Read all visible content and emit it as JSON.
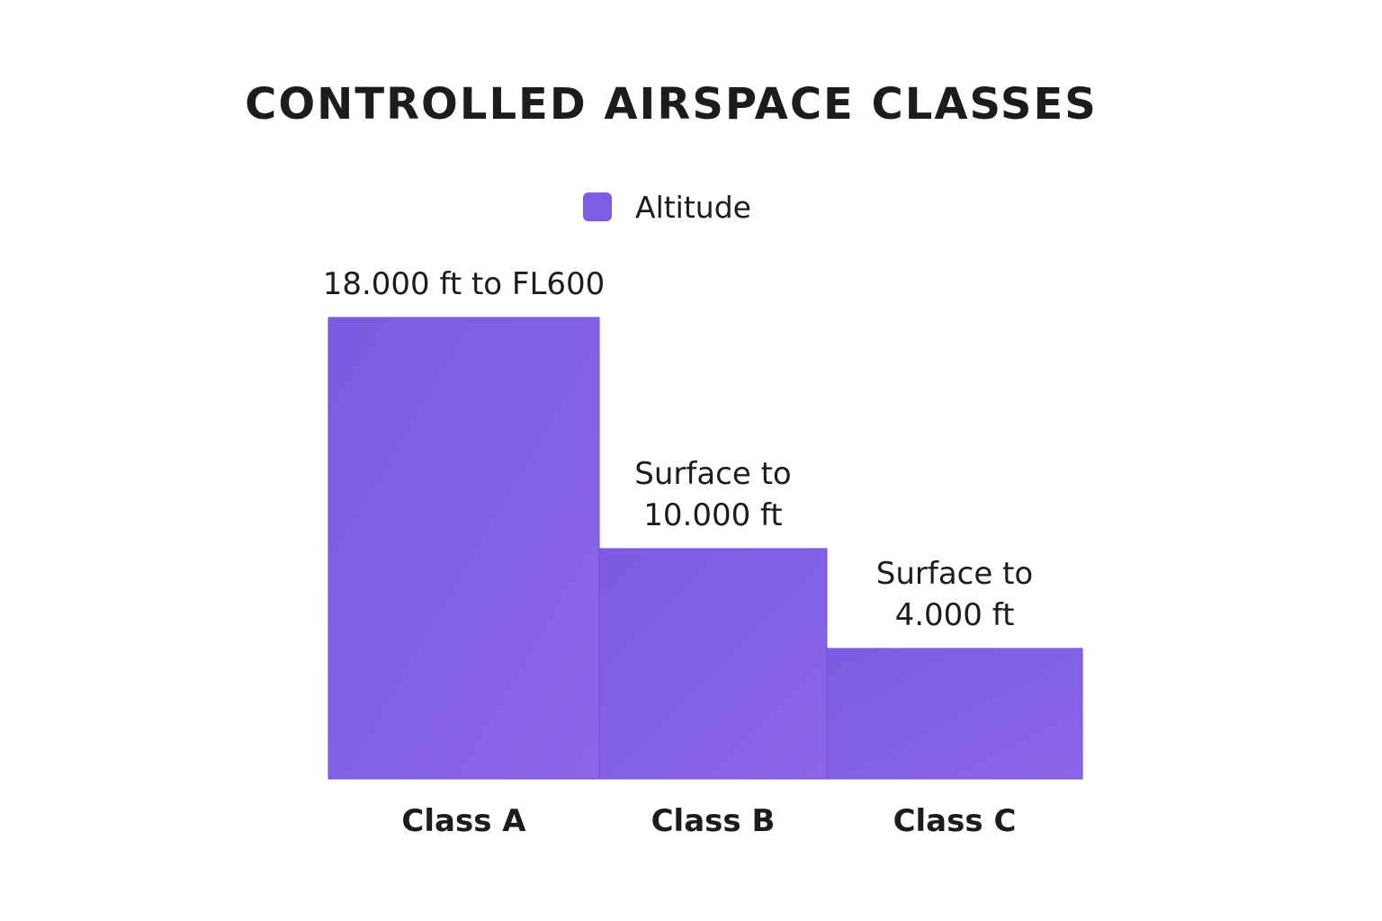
{
  "chart_data": {
    "type": "bar",
    "title": "CONTROLLED AIRSPACE CLASSES",
    "xlabel": "",
    "ylabel": "",
    "categories": [
      "Class A",
      "Class B",
      "Class C"
    ],
    "series": [
      {
        "name": "Altitude",
        "values": [
          60000,
          10000,
          4000
        ],
        "lower": [
          18000,
          0,
          0
        ]
      }
    ],
    "data_labels": [
      [
        "18.000 ft to FL600"
      ],
      [
        "Surface to",
        "10.000 ft"
      ],
      [
        "Surface to",
        "4.000 ft"
      ]
    ],
    "legend": "top-center",
    "grid": false,
    "colors": {
      "bar": "#7b5ce2",
      "bar_light": "#8a66e6",
      "legend": "#7d5de3",
      "text": "#1c1c1c"
    }
  }
}
